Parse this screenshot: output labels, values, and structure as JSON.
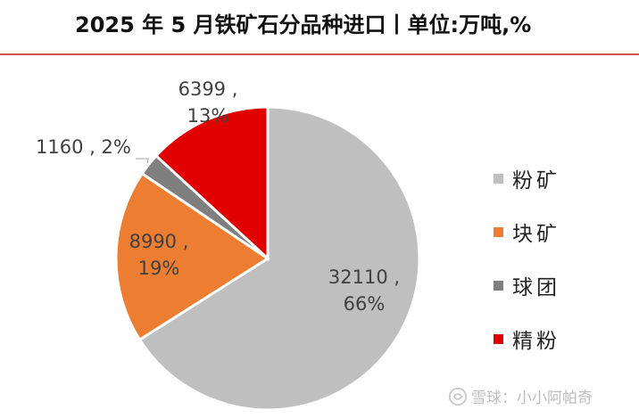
{
  "title": "2025 年 5 月铁矿石分品种进口丨单位:万吨,%",
  "chart_data": {
    "type": "pie",
    "title": "2025 年 5 月铁矿石分品种进口丨单位:万吨,%",
    "slices": [
      {
        "name": "粉矿",
        "value": 32110,
        "percent": "66%",
        "label_value": "32110 ,",
        "color": "#BFBFBF"
      },
      {
        "name": "块矿",
        "value": 8990,
        "percent": "19%",
        "label_value": "8990 ,",
        "color": "#ED7D31"
      },
      {
        "name": "球团",
        "value": 1160,
        "percent": "2%",
        "label_value": "1160 , 2%",
        "color": "#7F7F7F"
      },
      {
        "name": "精粉",
        "value": 6399,
        "percent": "13%",
        "label_value": "6399 ,",
        "color": "#E00000"
      }
    ],
    "legend_position": "right"
  },
  "watermark": {
    "text": "雪球：小小阿帕奇"
  }
}
